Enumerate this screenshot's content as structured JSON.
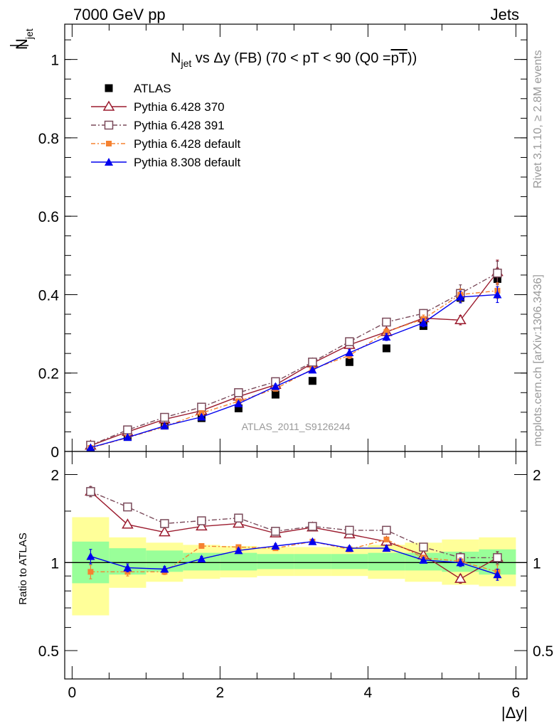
{
  "header": {
    "left": "7000 GeV pp",
    "right": "Jets"
  },
  "side_labels": {
    "rivet": "Rivet 3.1.10, ≥ 2.8M events",
    "mcplots": "mcplots.cern.ch [arXiv:1306.3436]"
  },
  "colors": {
    "atlas": "#000000",
    "p370": "#9b1b2e",
    "p391": "#7a4a5a",
    "p6def": "#f58231",
    "p8def": "#0000ee",
    "band_inner": "#99ff99",
    "band_outer": "#ffff99"
  },
  "chart_data": [
    {
      "type": "scatter",
      "title": {
        "main": "N",
        "sub": "jet",
        "rest": " vs Δy (FB) (70 < pT <  90 (Q0 =",
        "overline": "pT",
        "close": "))"
      },
      "ylabel": {
        "main": "N",
        "sub": "jet"
      },
      "watermark": "ATLAS_2011_S9126244",
      "xlim": [
        -0.1,
        6.15
      ],
      "ylim": [
        0,
        1.09
      ],
      "yticks": [
        0,
        0.2,
        0.4,
        0.6,
        0.8,
        1
      ],
      "ytick_labels": [
        "0",
        "0.2",
        "0.4",
        "0.6",
        "0.8",
        "1"
      ],
      "x": [
        0.25,
        0.75,
        1.25,
        1.75,
        2.25,
        2.75,
        3.25,
        3.75,
        4.25,
        4.75,
        5.25,
        5.75
      ],
      "series": [
        {
          "name": "ATLAS",
          "key": "atlas",
          "marker": "square-filled",
          "values": [
            0.01,
            0.037,
            0.067,
            0.085,
            0.11,
            0.145,
            0.18,
            0.228,
            0.263,
            0.32,
            0.392,
            0.44
          ]
        },
        {
          "name": "Pythia 6.428 370",
          "key": "p370",
          "marker": "triangle-open",
          "dash": "",
          "values": [
            0.015,
            0.05,
            0.082,
            0.104,
            0.14,
            0.17,
            0.225,
            0.272,
            0.305,
            0.34,
            0.335,
            0.458
          ],
          "errors": [
            0.004,
            0.004,
            0.004,
            0.005,
            0.005,
            0.006,
            0.006,
            0.008,
            0.009,
            0.01,
            0.012,
            0.03
          ]
        },
        {
          "name": "Pythia 6.428 391",
          "key": "p391",
          "marker": "square-open",
          "dash": "7,3,2,3",
          "values": [
            0.016,
            0.055,
            0.087,
            0.113,
            0.15,
            0.178,
            0.228,
            0.28,
            0.33,
            0.352,
            0.403,
            0.455
          ],
          "errors": [
            0.004,
            0.004,
            0.004,
            0.005,
            0.005,
            0.006,
            0.006,
            0.008,
            0.009,
            0.01,
            0.022,
            0.03
          ]
        },
        {
          "name": "Pythia 6.428 default",
          "key": "p6def",
          "marker": "square-filled-small",
          "dash": "6,3,2,3",
          "values": [
            0.009,
            0.035,
            0.063,
            0.098,
            0.128,
            0.16,
            0.21,
            0.245,
            0.305,
            0.338,
            0.4,
            0.41
          ],
          "errors": [
            0.003,
            0.003,
            0.004,
            0.005,
            0.005,
            0.006,
            0.006,
            0.008,
            0.009,
            0.01,
            0.015,
            0.02
          ]
        },
        {
          "name": "Pythia 8.308 default",
          "key": "p8def",
          "marker": "triangle-filled",
          "dash": "",
          "values": [
            0.01,
            0.036,
            0.065,
            0.088,
            0.122,
            0.166,
            0.208,
            0.252,
            0.292,
            0.328,
            0.394,
            0.4
          ],
          "errors": [
            0.003,
            0.003,
            0.004,
            0.005,
            0.005,
            0.006,
            0.006,
            0.008,
            0.009,
            0.01,
            0.015,
            0.02
          ]
        }
      ]
    },
    {
      "type": "line",
      "ylabel": "Ratio to ATLAS",
      "xlabel": "|Δy|",
      "xlim": [
        -0.1,
        6.15
      ],
      "ylim": [
        0.4,
        2.4
      ],
      "log_y": true,
      "yticks": [
        0.5,
        1,
        2
      ],
      "ytick_labels": [
        "0.5",
        "1",
        "2"
      ],
      "xticks": [
        0,
        2,
        4,
        6
      ],
      "xtick_labels": [
        "0",
        "2",
        "4",
        "6"
      ],
      "x": [
        0.25,
        0.75,
        1.25,
        1.75,
        2.25,
        2.75,
        3.25,
        3.75,
        4.25,
        4.75,
        5.25,
        5.75
      ],
      "bin_edges": [
        0,
        0.5,
        1,
        1.5,
        2,
        2.5,
        3,
        3.5,
        4,
        4.5,
        5,
        5.5,
        6
      ],
      "band_inner": [
        [
          0.85,
          1.18
        ],
        [
          0.91,
          1.12
        ],
        [
          0.93,
          1.1
        ],
        [
          0.94,
          1.08
        ],
        [
          0.94,
          1.08
        ],
        [
          0.95,
          1.07
        ],
        [
          0.95,
          1.07
        ],
        [
          0.95,
          1.07
        ],
        [
          0.94,
          1.08
        ],
        [
          0.94,
          1.08
        ],
        [
          0.93,
          1.09
        ],
        [
          0.91,
          1.11
        ]
      ],
      "band_outer": [
        [
          0.66,
          1.43
        ],
        [
          0.82,
          1.22
        ],
        [
          0.86,
          1.17
        ],
        [
          0.88,
          1.15
        ],
        [
          0.89,
          1.14
        ],
        [
          0.9,
          1.13
        ],
        [
          0.9,
          1.13
        ],
        [
          0.9,
          1.13
        ],
        [
          0.88,
          1.15
        ],
        [
          0.86,
          1.17
        ],
        [
          0.84,
          1.2
        ],
        [
          0.83,
          1.22
        ]
      ],
      "series": [
        {
          "name": "Pythia 6.428 370",
          "key": "p370",
          "marker": "triangle-open",
          "dash": "",
          "values": [
            1.75,
            1.35,
            1.27,
            1.33,
            1.36,
            1.26,
            1.32,
            1.25,
            1.18,
            1.06,
            0.88,
            1.04
          ],
          "errors": [
            0.07,
            0.03,
            0.02,
            0.02,
            0.02,
            0.02,
            0.02,
            0.02,
            0.02,
            0.02,
            0.03,
            0.05
          ]
        },
        {
          "name": "Pythia 6.428 391",
          "key": "p391",
          "marker": "square-open",
          "dash": "7,3,2,3",
          "values": [
            1.75,
            1.55,
            1.36,
            1.39,
            1.42,
            1.28,
            1.33,
            1.29,
            1.29,
            1.13,
            1.04,
            1.04
          ],
          "errors": [
            0.07,
            0.03,
            0.02,
            0.02,
            0.02,
            0.02,
            0.02,
            0.02,
            0.02,
            0.02,
            0.04,
            0.05
          ]
        },
        {
          "name": "Pythia 6.428 default",
          "key": "p6def",
          "marker": "square-filled-small",
          "dash": "6,3,2,3",
          "values": [
            0.93,
            0.93,
            0.93,
            1.14,
            1.13,
            1.12,
            1.18,
            1.11,
            1.2,
            1.04,
            1.01,
            0.93
          ],
          "errors": [
            0.05,
            0.03,
            0.02,
            0.02,
            0.02,
            0.02,
            0.02,
            0.02,
            0.02,
            0.02,
            0.03,
            0.05
          ]
        },
        {
          "name": "Pythia 8.308 default",
          "key": "p8def",
          "marker": "triangle-filled",
          "dash": "",
          "values": [
            1.05,
            0.96,
            0.95,
            1.03,
            1.1,
            1.14,
            1.18,
            1.12,
            1.12,
            1.02,
            1.0,
            0.91
          ],
          "errors": [
            0.06,
            0.03,
            0.02,
            0.02,
            0.02,
            0.02,
            0.02,
            0.02,
            0.02,
            0.02,
            0.03,
            0.04
          ]
        }
      ]
    }
  ]
}
